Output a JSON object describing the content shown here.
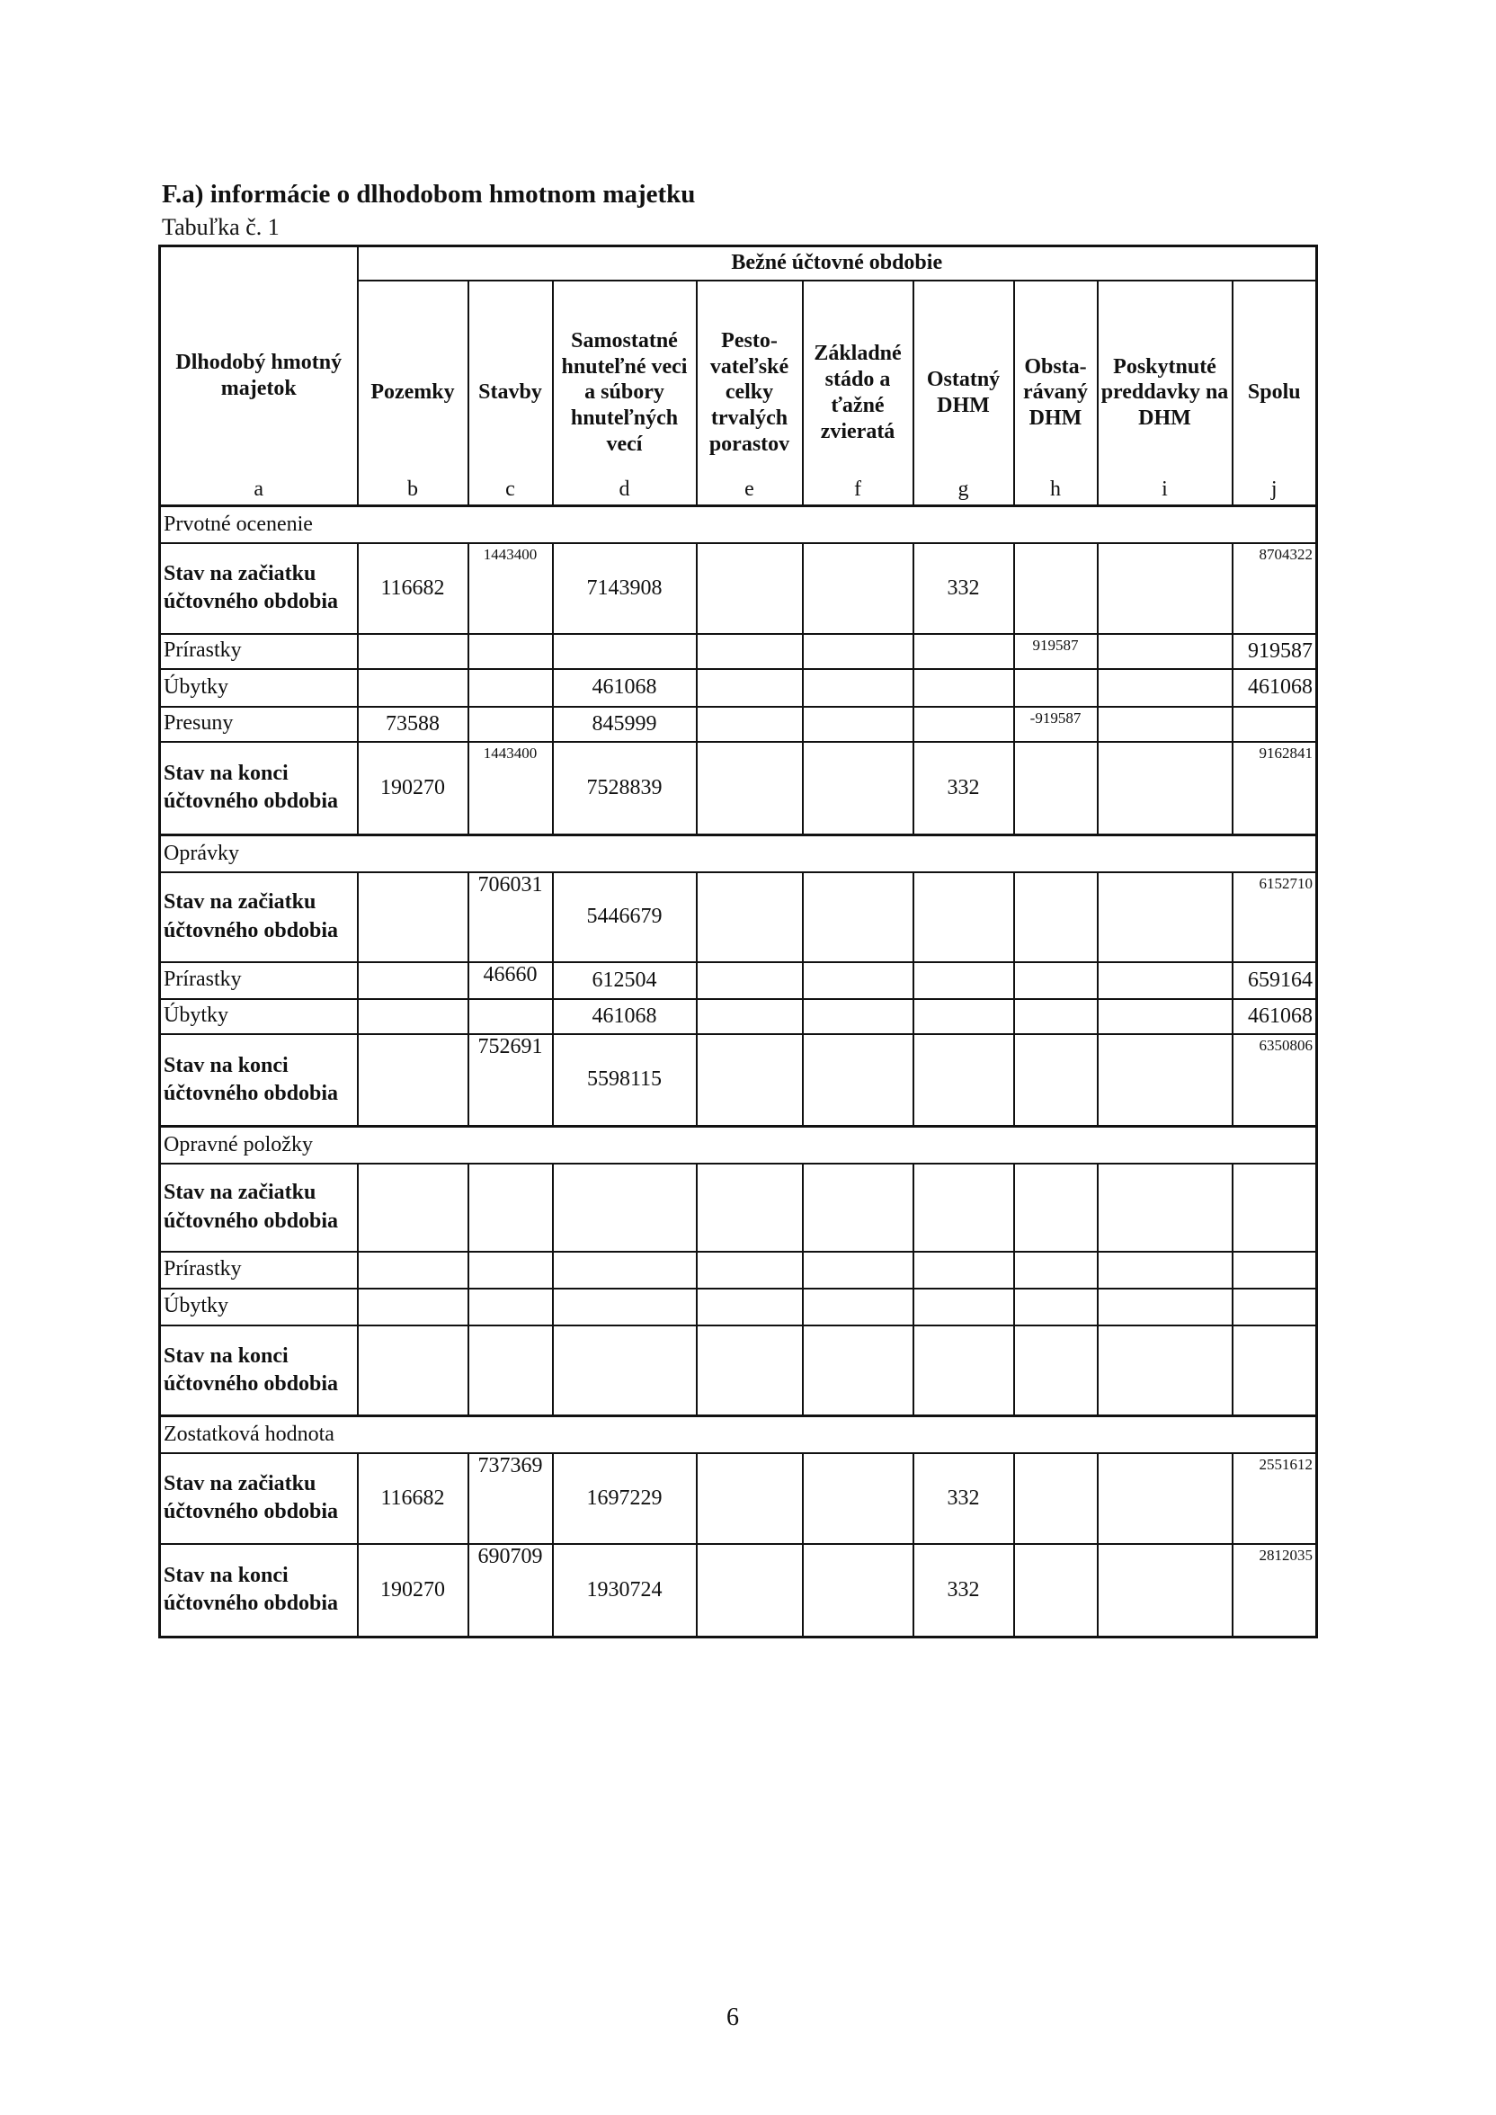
{
  "title": "F.a) informácie o dlhodobom hmotnom majetku",
  "subtitle": "Tabuľka č. 1",
  "header": {
    "group_label": "Bežné účtovné obdobie",
    "columns": [
      {
        "label": "Dlhodobý hmotný majetok",
        "letter": "a"
      },
      {
        "label": "Pozemky",
        "letter": "b"
      },
      {
        "label": "Stavby",
        "letter": "c"
      },
      {
        "label": "Samostatné hnuteľné veci a súbory hnuteľných vecí",
        "letter": "d"
      },
      {
        "label": "Pesto-vateľské celky trvalých porastov",
        "letter": "e"
      },
      {
        "label": "Základné stádo a ťažné zvieratá",
        "letter": "f"
      },
      {
        "label": "Ostatný DHM",
        "letter": "g"
      },
      {
        "label": "Obsta-rávaný DHM",
        "letter": "h"
      },
      {
        "label": "Poskytnuté preddavky na DHM",
        "letter": "i"
      },
      {
        "label": "Spolu",
        "letter": "j"
      }
    ]
  },
  "sections": [
    {
      "name": "Prvotné ocenenie",
      "rows": [
        {
          "label": "Stav na začiatku účtovného obdobia",
          "bold": true,
          "values": [
            "116682",
            "1443400",
            "7143908",
            "",
            "",
            "332",
            "",
            "",
            "8704322"
          ]
        },
        {
          "label": "Prírastky",
          "bold": false,
          "values": [
            "",
            "",
            "",
            "",
            "",
            "",
            "919587",
            "",
            "919587"
          ]
        },
        {
          "label": "Úbytky",
          "bold": false,
          "values": [
            "",
            "",
            "461068",
            "",
            "",
            "",
            "",
            "",
            "461068"
          ]
        },
        {
          "label": "Presuny",
          "bold": false,
          "values": [
            "73588",
            "",
            "845999",
            "",
            "",
            "",
            "-919587",
            "",
            ""
          ]
        },
        {
          "label": "Stav na konci účtovného obdobia",
          "bold": true,
          "values": [
            "190270",
            "1443400",
            "7528839",
            "",
            "",
            "332",
            "",
            "",
            "9162841"
          ]
        }
      ]
    },
    {
      "name": "Oprávky",
      "rows": [
        {
          "label": "Stav na začiatku účtovného obdobia",
          "bold": true,
          "values": [
            "",
            "706031",
            "5446679",
            "",
            "",
            "",
            "",
            "",
            "6152710"
          ]
        },
        {
          "label": "Prírastky",
          "bold": false,
          "values": [
            "",
            "46660",
            "612504",
            "",
            "",
            "",
            "",
            "",
            "659164"
          ]
        },
        {
          "label": "Úbytky",
          "bold": false,
          "values": [
            "",
            "",
            "461068",
            "",
            "",
            "",
            "",
            "",
            "461068"
          ]
        },
        {
          "label": "Stav na konci účtovného obdobia",
          "bold": true,
          "values": [
            "",
            "752691",
            "5598115",
            "",
            "",
            "",
            "",
            "",
            "6350806"
          ]
        }
      ]
    },
    {
      "name": "Opravné položky",
      "rows": [
        {
          "label": "Stav na začiatku účtovného obdobia",
          "bold": true,
          "values": [
            "",
            "",
            "",
            "",
            "",
            "",
            "",
            "",
            ""
          ]
        },
        {
          "label": "Prírastky",
          "bold": false,
          "values": [
            "",
            "",
            "",
            "",
            "",
            "",
            "",
            "",
            ""
          ]
        },
        {
          "label": "Úbytky",
          "bold": false,
          "values": [
            "",
            "",
            "",
            "",
            "",
            "",
            "",
            "",
            ""
          ]
        },
        {
          "label": "Stav na konci účtovného obdobia",
          "bold": true,
          "values": [
            "",
            "",
            "",
            "",
            "",
            "",
            "",
            "",
            ""
          ]
        }
      ]
    },
    {
      "name": "Zostatková hodnota",
      "rows": [
        {
          "label": "Stav na začiatku účtovného obdobia",
          "bold": true,
          "values": [
            "116682",
            "737369",
            "1697229",
            "",
            "",
            "332",
            "",
            "",
            "2551612"
          ]
        },
        {
          "label": "Stav na konci účtovného obdobia",
          "bold": true,
          "values": [
            "190270",
            "690709",
            "1930724",
            "",
            "",
            "332",
            "",
            "",
            "2812035"
          ]
        }
      ]
    }
  ],
  "page_number": "6"
}
